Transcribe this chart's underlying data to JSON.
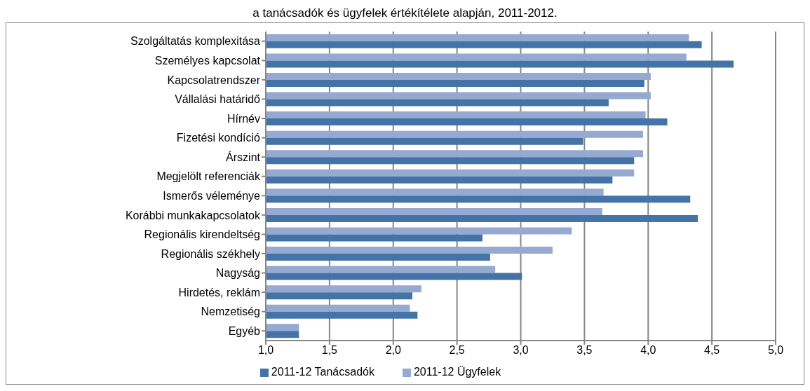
{
  "chart_data": {
    "type": "bar",
    "orientation": "horizontal",
    "title": "a tanácsadók és ügyfelek értékítélete alapján, 2011-2012.",
    "categories": [
      "Szolgáltatás komplexitása",
      "Személyes kapcsolat",
      "Kapcsolatrendszer",
      "Vállalási határidő",
      "Hírnév",
      "Fizetési kondíció",
      "Árszint",
      "Megjelölt referenciák",
      "Ismerős véleménye",
      "Korábbi munkakapcsolatok",
      "Regionális kirendeltség",
      "Regionális székhely",
      "Nagyság",
      "Hirdetés, reklám",
      "Nemzetiség",
      "Egyéb"
    ],
    "series": [
      {
        "name": "2011-12 Ügyfelek",
        "color": "#95a9d1",
        "values": [
          4.32,
          4.3,
          4.02,
          4.02,
          3.98,
          3.96,
          3.96,
          3.89,
          3.65,
          3.64,
          3.4,
          3.25,
          2.8,
          2.22,
          2.13,
          1.26
        ]
      },
      {
        "name": "2011-12 Tanácsadók",
        "color": "#4473a8",
        "values": [
          4.42,
          4.67,
          3.97,
          3.69,
          4.15,
          3.49,
          3.89,
          3.72,
          4.33,
          4.39,
          2.7,
          2.76,
          3.01,
          2.15,
          2.19,
          1.26
        ]
      }
    ],
    "xlim": [
      1,
      5
    ],
    "xticks": [
      {
        "value": 1,
        "label": "1,0"
      },
      {
        "value": 1.5,
        "label": "1,5"
      },
      {
        "value": 2,
        "label": "2,0"
      },
      {
        "value": 2.5,
        "label": "2,5"
      },
      {
        "value": 3,
        "label": "3,0"
      },
      {
        "value": 3.5,
        "label": "3,5"
      },
      {
        "value": 4,
        "label": "4,0"
      },
      {
        "value": 4.5,
        "label": "4,5"
      },
      {
        "value": 5,
        "label": "5,0"
      }
    ],
    "grid": "x",
    "legend": "bottom"
  }
}
